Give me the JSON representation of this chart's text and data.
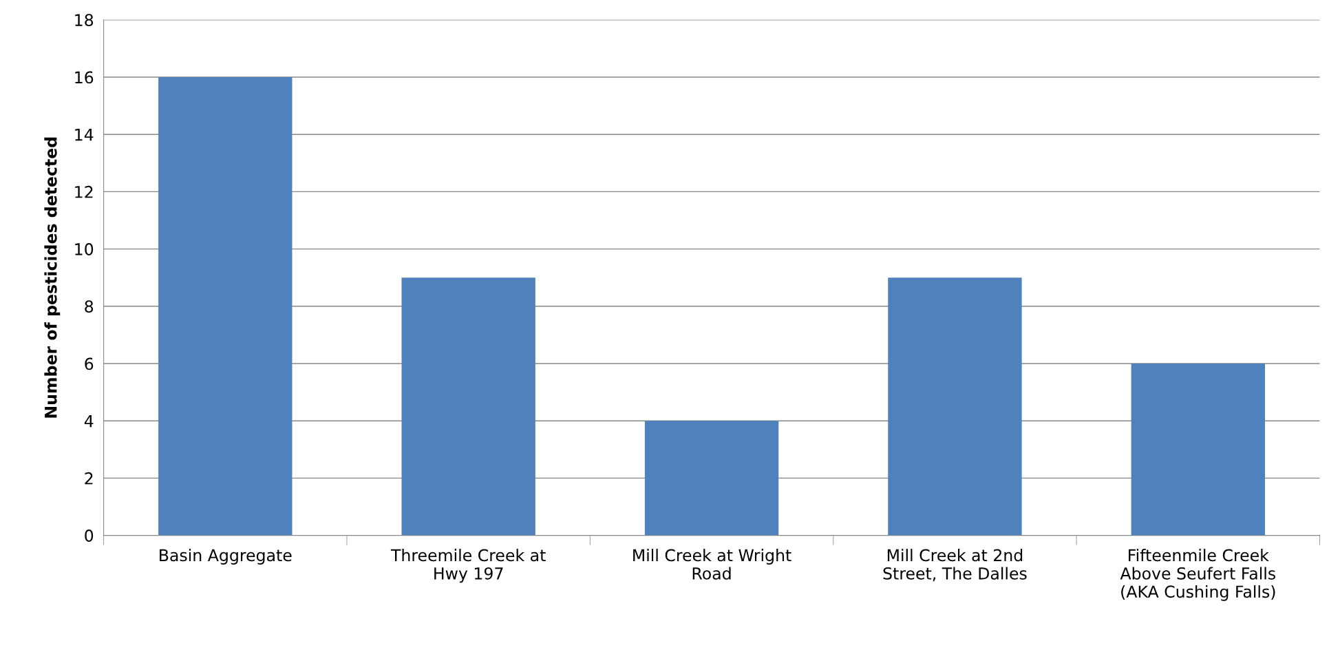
{
  "chart_data": {
    "type": "bar",
    "ylabel": "Number of pesticides detected",
    "categories": [
      "Basin Aggregate",
      "Threemile Creek at\nHwy 197",
      "Mill Creek at Wright\nRoad",
      "Mill Creek at 2nd\nStreet, The Dalles",
      "Fifteenmile Creek\nAbove Seufert Falls\n(AKA Cushing Falls)"
    ],
    "values": [
      16,
      9,
      4,
      9,
      6
    ],
    "color": "#4f81bd",
    "ylim": [
      0,
      18
    ],
    "yticks": [
      0,
      2,
      4,
      6,
      8,
      10,
      12,
      14,
      16,
      18
    ],
    "grid": "y",
    "legend": false
  }
}
